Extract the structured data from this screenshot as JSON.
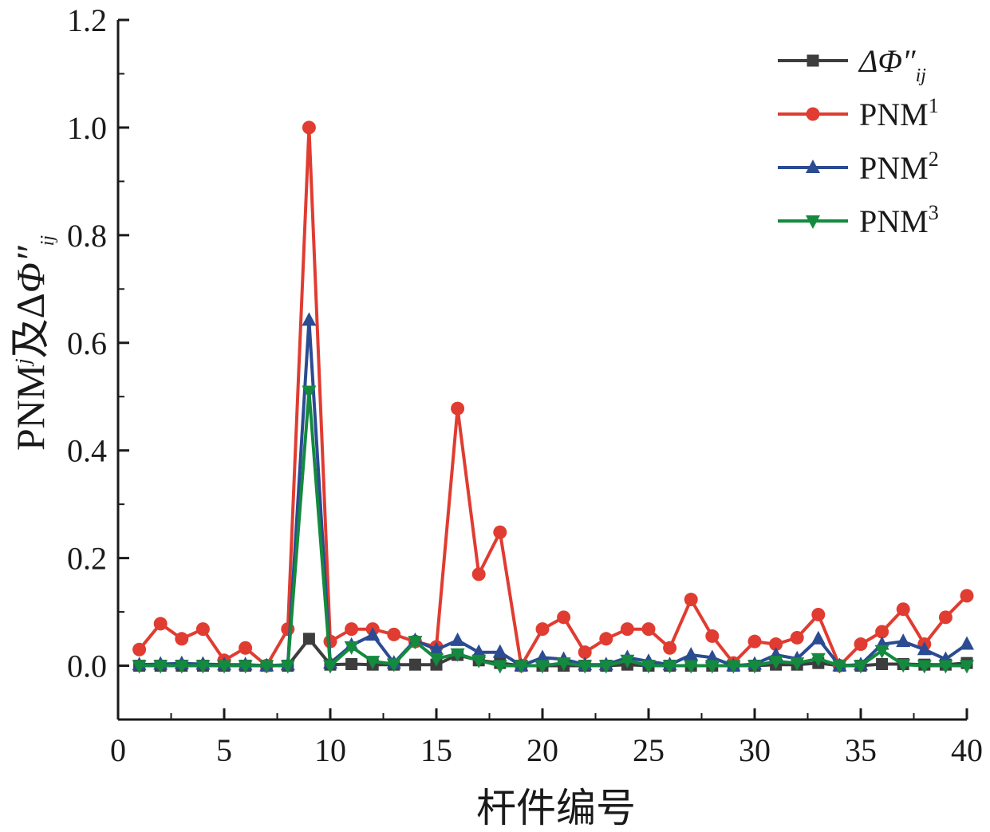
{
  "chart_data": {
    "type": "line",
    "xlabel": "杆件编号",
    "ylabel": {
      "prefix": "PNM",
      "prefix_sup": "j",
      "joiner": "及",
      "delta": "Δ",
      "phi": "Φ",
      "phi_mark": "″",
      "phi_sub": "ij"
    },
    "xlim": [
      0,
      40
    ],
    "ylim": [
      -0.1,
      1.2
    ],
    "xticks": [
      0,
      5,
      10,
      15,
      20,
      25,
      30,
      35,
      40
    ],
    "xtick_labels": [
      "0",
      "5",
      "10",
      "15",
      "20",
      "25",
      "30",
      "35",
      "40"
    ],
    "yticks": [
      0,
      0.2,
      0.4,
      0.6,
      0.8,
      1.0,
      1.2
    ],
    "ytick_labels": [
      "0.0",
      "0.2",
      "0.4",
      "0.6",
      "0.8",
      "1.0",
      "1.2"
    ],
    "grid": false,
    "legend_position": "top-right",
    "x": [
      1,
      2,
      3,
      4,
      5,
      6,
      7,
      8,
      9,
      10,
      11,
      12,
      13,
      14,
      15,
      16,
      17,
      18,
      19,
      20,
      21,
      22,
      23,
      24,
      25,
      26,
      27,
      28,
      29,
      30,
      31,
      32,
      33,
      34,
      35,
      36,
      37,
      38,
      39,
      40
    ],
    "series": [
      {
        "name": "ΔΦ″ij",
        "legend": {
          "main": "ΔΦ″",
          "sub": "ij",
          "sup": ""
        },
        "color": "#3d3d3d",
        "marker": "square",
        "values": [
          0.0,
          0.0,
          0.0,
          0.0,
          0.0,
          0.0,
          0.0,
          0.0,
          0.05,
          0.002,
          0.003,
          0.002,
          0.002,
          0.002,
          0.002,
          0.02,
          0.01,
          0.005,
          0.0,
          0.0,
          0.0,
          0.0,
          0.0,
          0.002,
          0.0,
          0.0,
          0.0,
          0.0,
          0.0,
          0.0,
          0.002,
          0.002,
          0.005,
          0.0,
          0.0,
          0.003,
          0.003,
          0.002,
          0.002,
          0.005
        ]
      },
      {
        "name": "PNM1",
        "legend": {
          "main": "PNM",
          "sub": "",
          "sup": "1"
        },
        "color": "#e03c31",
        "marker": "circle",
        "values": [
          0.03,
          0.078,
          0.05,
          0.068,
          0.01,
          0.033,
          0.0,
          0.068,
          1.0,
          0.045,
          0.068,
          0.068,
          0.058,
          0.045,
          0.035,
          0.478,
          0.17,
          0.248,
          0.0,
          0.068,
          0.09,
          0.025,
          0.05,
          0.068,
          0.068,
          0.033,
          0.123,
          0.055,
          0.005,
          0.045,
          0.04,
          0.052,
          0.095,
          0.0,
          0.04,
          0.063,
          0.105,
          0.04,
          0.09,
          0.13
        ]
      },
      {
        "name": "PNM2",
        "legend": {
          "main": "PNM",
          "sub": "",
          "sup": "2"
        },
        "color": "#2b4b93",
        "marker": "triangle-up",
        "values": [
          0.002,
          0.003,
          0.004,
          0.003,
          0.002,
          0.002,
          0.0,
          0.002,
          0.642,
          0.005,
          0.038,
          0.057,
          0.005,
          0.047,
          0.03,
          0.047,
          0.025,
          0.025,
          0.0,
          0.015,
          0.012,
          0.002,
          0.002,
          0.015,
          0.008,
          0.002,
          0.02,
          0.015,
          0.0,
          0.003,
          0.02,
          0.013,
          0.05,
          0.0,
          0.002,
          0.04,
          0.045,
          0.03,
          0.012,
          0.04
        ]
      },
      {
        "name": "PNM3",
        "legend": {
          "main": "PNM",
          "sub": "",
          "sup": "3"
        },
        "color": "#138a3e",
        "marker": "triangle-down",
        "values": [
          0.0,
          0.0,
          0.0,
          0.0,
          0.0,
          0.0,
          0.0,
          0.0,
          0.51,
          0.0,
          0.035,
          0.008,
          0.003,
          0.045,
          0.013,
          0.022,
          0.01,
          0.0,
          0.0,
          0.0,
          0.005,
          0.0,
          0.0,
          0.01,
          0.0,
          0.0,
          0.0,
          0.0,
          0.0,
          0.0,
          0.008,
          0.005,
          0.013,
          0.0,
          0.0,
          0.028,
          0.002,
          0.0,
          0.0,
          0.0
        ]
      }
    ]
  }
}
